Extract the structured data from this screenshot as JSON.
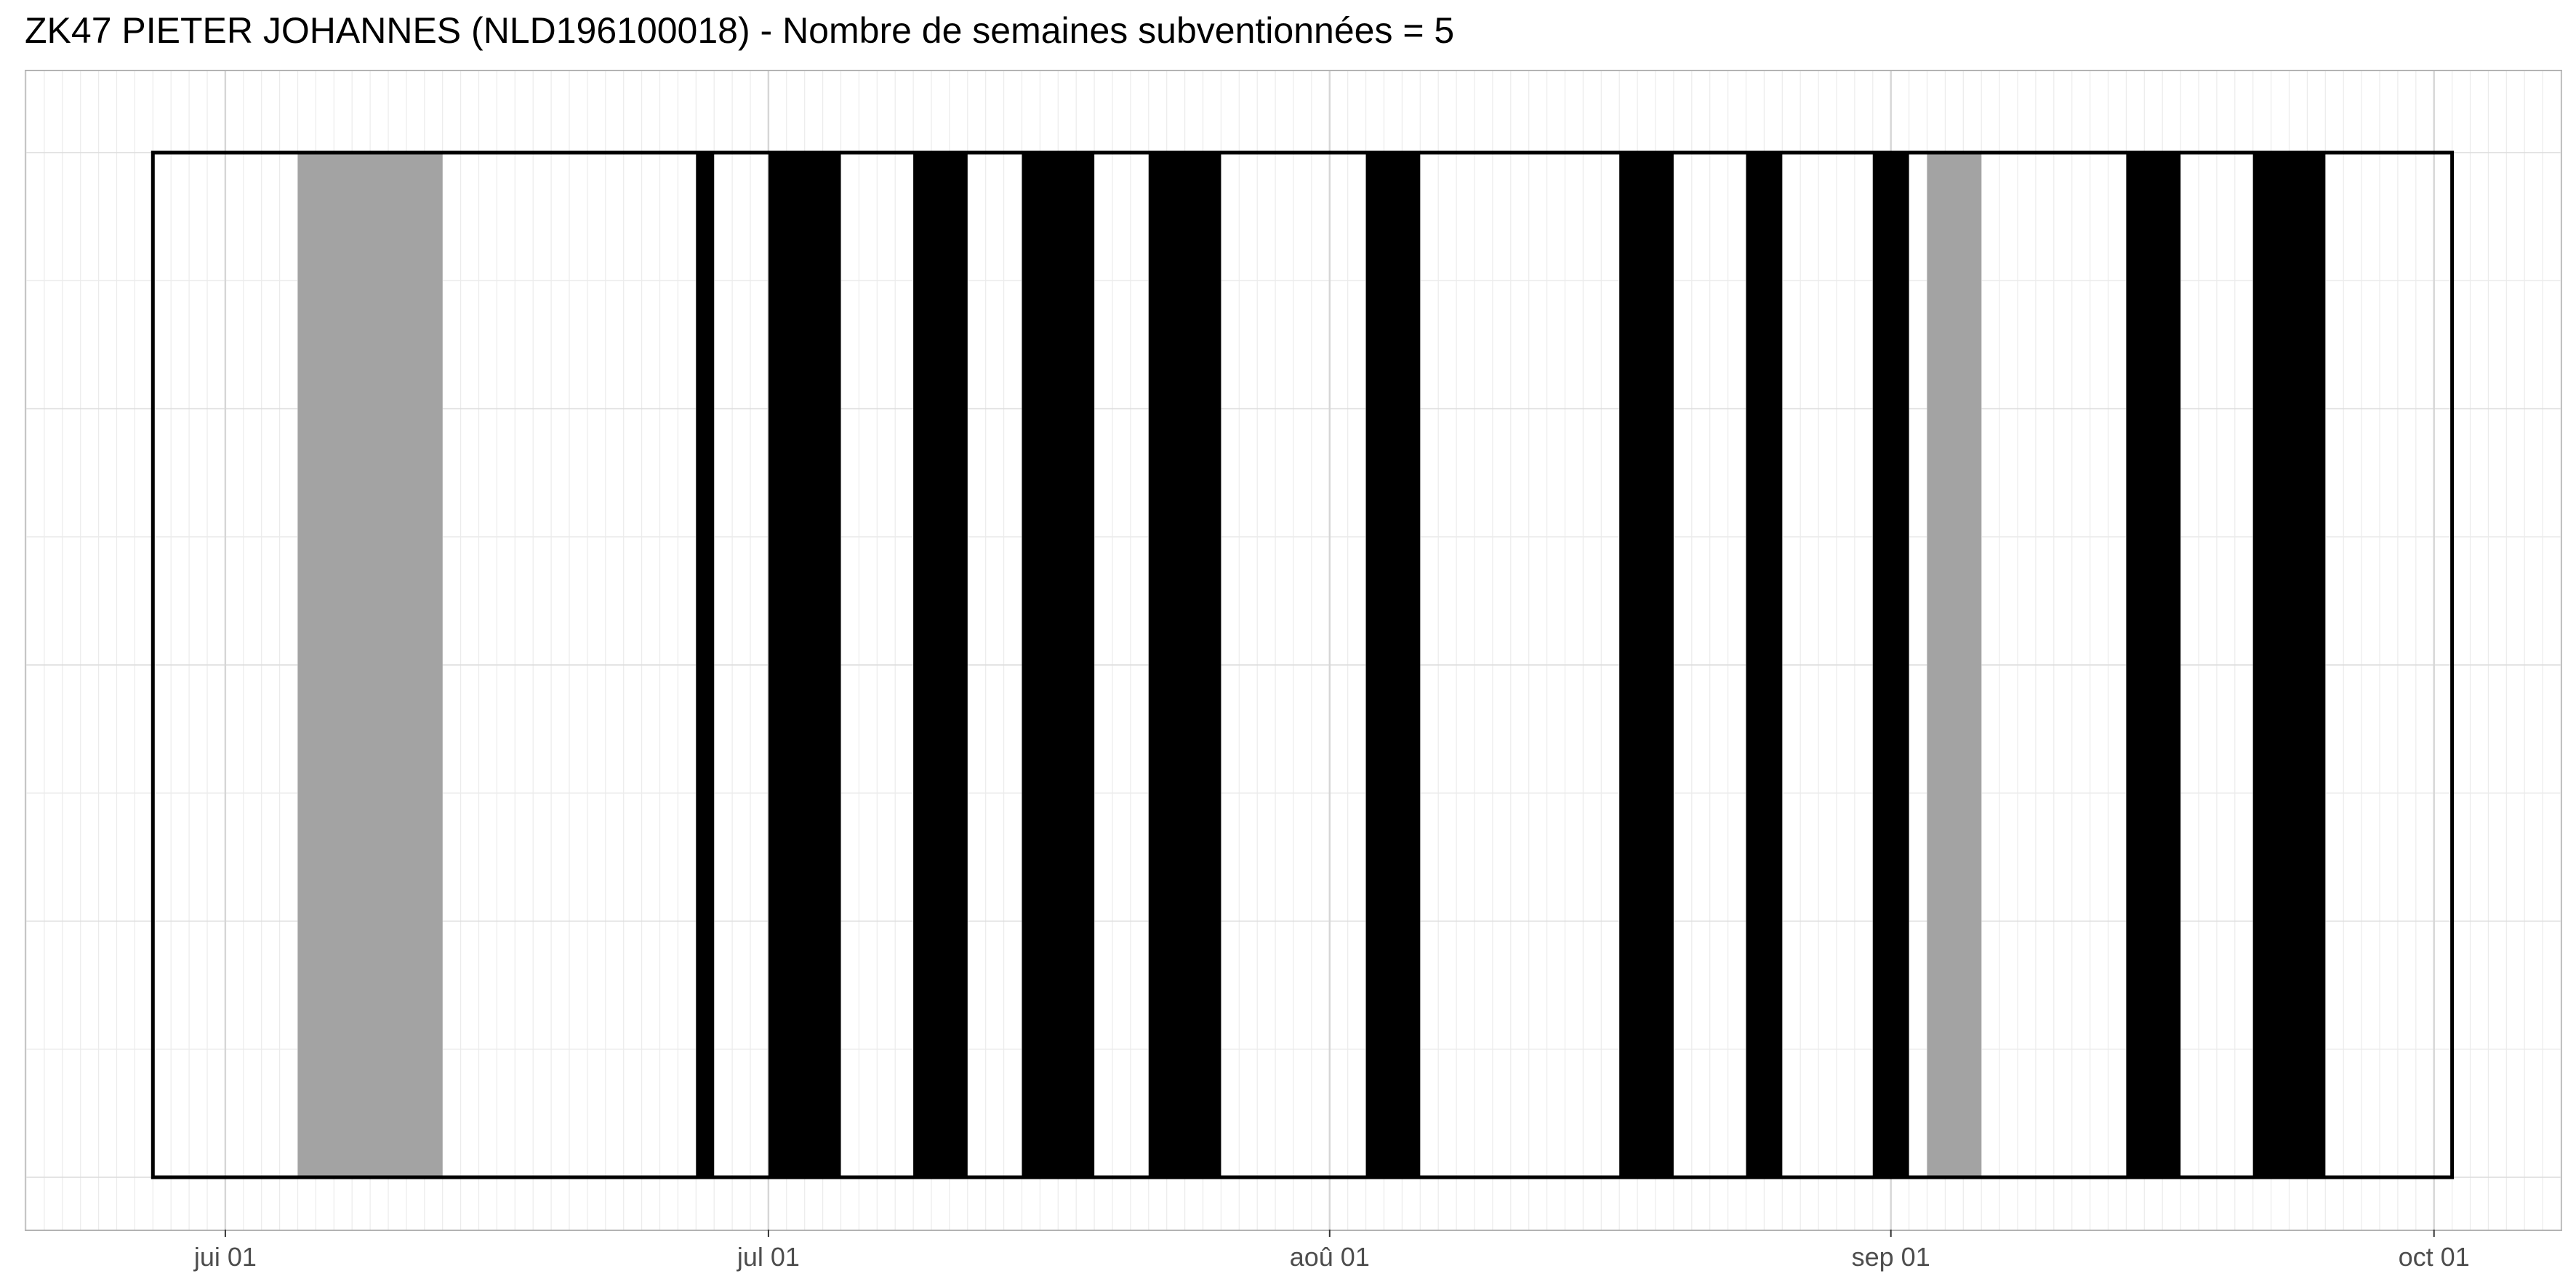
{
  "chart_data": {
    "type": "bar",
    "title": "ZK47 PIETER JOHANNES (NLD196100018) - Nombre de semaines subventionnées = 5",
    "xlabel": "",
    "ylabel": "",
    "x_axis": {
      "scale": "date",
      "range": [
        "2024-05-21",
        "2024-10-08"
      ],
      "tick_labels": [
        {
          "date": "2024-06-01",
          "label": "jui 01"
        },
        {
          "date": "2024-07-01",
          "label": "jul 01"
        },
        {
          "date": "2024-08-01",
          "label": "aoû 01"
        },
        {
          "date": "2024-09-01",
          "label": "sep 01"
        },
        {
          "date": "2024-10-01",
          "label": "oct 01"
        }
      ]
    },
    "y_axis": {
      "range": [
        0,
        1
      ],
      "tick_labels": []
    },
    "grid": true,
    "outline": {
      "start": "2024-05-28",
      "end": "2024-10-02",
      "color": "#000000"
    },
    "series": [
      {
        "color": "#000000",
        "values": [
          {
            "start": "2024-06-27",
            "end": "2024-06-28"
          },
          {
            "start": "2024-07-01",
            "end": "2024-07-05"
          },
          {
            "start": "2024-07-09",
            "end": "2024-07-12"
          },
          {
            "start": "2024-07-15",
            "end": "2024-07-19"
          },
          {
            "start": "2024-07-22",
            "end": "2024-07-26"
          },
          {
            "start": "2024-08-03",
            "end": "2024-08-06"
          },
          {
            "start": "2024-08-17",
            "end": "2024-08-20"
          },
          {
            "start": "2024-08-24",
            "end": "2024-08-26"
          },
          {
            "start": "2024-08-31",
            "end": "2024-09-02"
          },
          {
            "start": "2024-09-14",
            "end": "2024-09-17"
          },
          {
            "start": "2024-09-21",
            "end": "2024-09-25"
          }
        ]
      },
      {
        "color": "#a3a3a3",
        "values": [
          {
            "start": "2024-06-05",
            "end": "2024-06-13"
          },
          {
            "start": "2024-09-03",
            "end": "2024-09-06"
          }
        ]
      }
    ]
  }
}
